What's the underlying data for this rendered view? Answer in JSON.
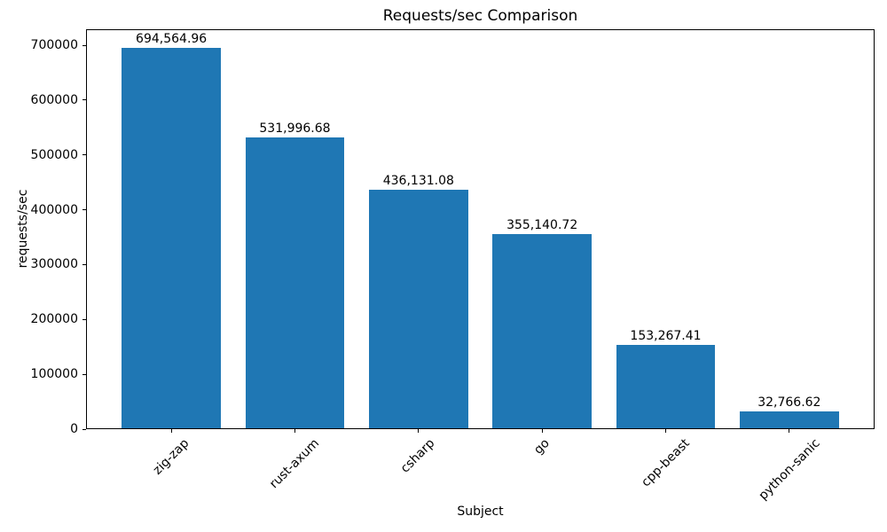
{
  "chart_data": {
    "type": "bar",
    "title": "Requests/sec Comparison",
    "xlabel": "Subject",
    "ylabel": "requests/sec",
    "categories": [
      "zig-zap",
      "rust-axum",
      "csharp",
      "go",
      "cpp-beast",
      "python-sanic"
    ],
    "values": [
      694564.96,
      531996.68,
      436131.08,
      355140.72,
      153267.41,
      32766.62
    ],
    "value_labels": [
      "694,564.96",
      "531,996.68",
      "436,131.08",
      "355,140.72",
      "153,267.41",
      "32,766.62"
    ],
    "yticks": [
      0,
      100000,
      200000,
      300000,
      400000,
      500000,
      600000,
      700000
    ],
    "ytick_labels": [
      "0",
      "100000",
      "200000",
      "300000",
      "400000",
      "500000",
      "600000",
      "700000"
    ],
    "ylim": [
      0,
      729293
    ],
    "xlim": [
      -0.69,
      5.69
    ],
    "bar_width": 0.8,
    "bar_color": "#1f77b4",
    "grid": false,
    "legend_position": "none",
    "xtick_rotation_deg": 45
  }
}
